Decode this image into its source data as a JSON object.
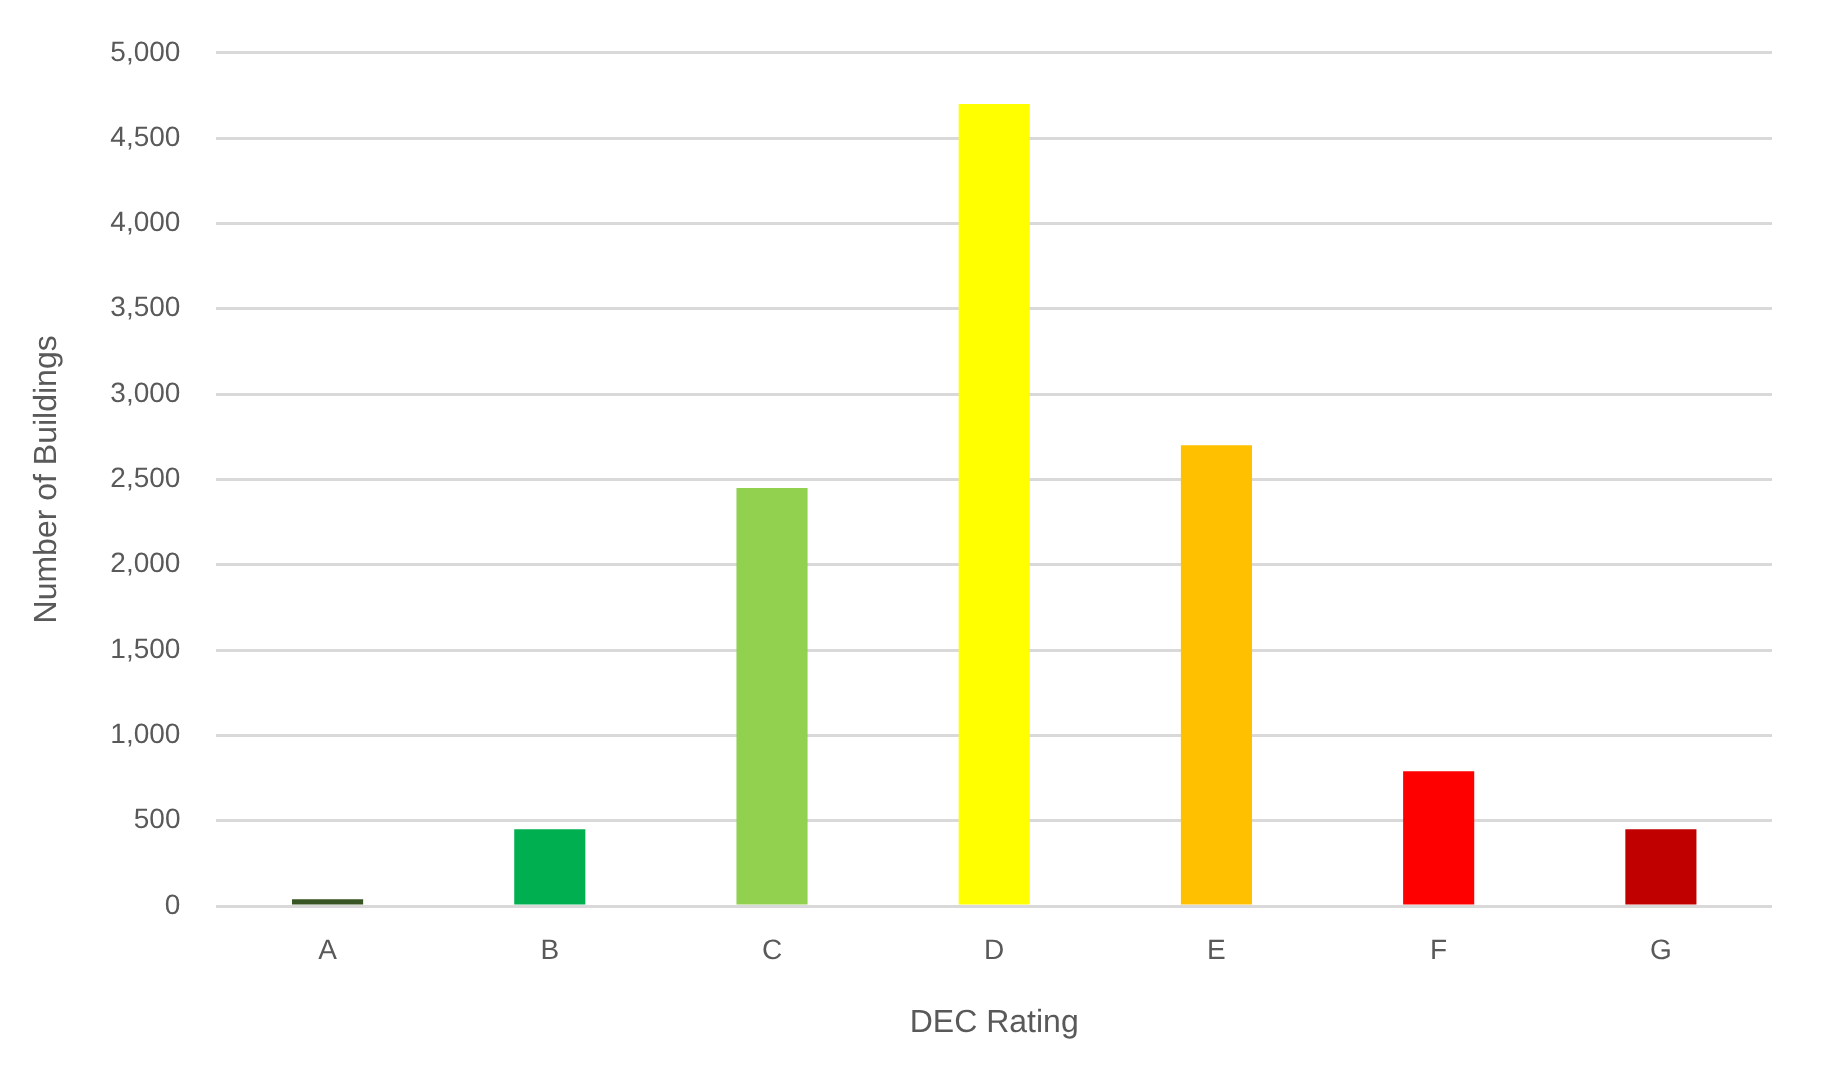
{
  "chart_data": {
    "type": "bar",
    "xlabel": "DEC Rating",
    "ylabel": "Number of Buildings",
    "categories": [
      "A",
      "B",
      "C",
      "D",
      "E",
      "F",
      "G"
    ],
    "values": [
      40,
      450,
      2450,
      4700,
      2700,
      790,
      450
    ],
    "colors": [
      "#375623",
      "#00b050",
      "#92d050",
      "#ffff00",
      "#ffc000",
      "#ff0000",
      "#c00000"
    ],
    "ylim": [
      0,
      5000
    ],
    "yticks": [
      {
        "value": 0,
        "label": "0"
      },
      {
        "value": 500,
        "label": "500"
      },
      {
        "value": 1000,
        "label": "1,000"
      },
      {
        "value": 1500,
        "label": "1,500"
      },
      {
        "value": 2000,
        "label": "2,000"
      },
      {
        "value": 2500,
        "label": "2,500"
      },
      {
        "value": 3000,
        "label": "3,000"
      },
      {
        "value": 3500,
        "label": "3,500"
      },
      {
        "value": 4000,
        "label": "4,000"
      },
      {
        "value": 4500,
        "label": "4,500"
      },
      {
        "value": 5000,
        "label": "5,000"
      }
    ],
    "grid": "y",
    "legend": false
  }
}
